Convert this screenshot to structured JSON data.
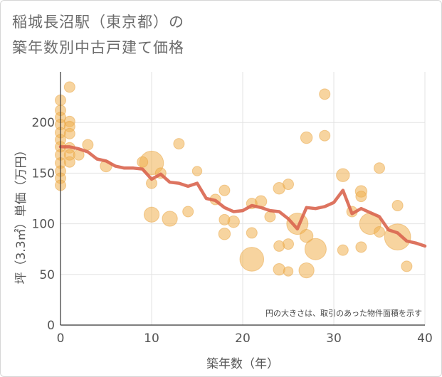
{
  "title": {
    "line1": "稲城長沼駅（東京都）の",
    "line2": "築年数別中古戸建て価格"
  },
  "chart_data": {
    "type": "scatter",
    "xlabel": "築年数（年）",
    "ylabel": "坪（3.3㎡）単価（万円）",
    "xlim": [
      0,
      40
    ],
    "ylim": [
      0,
      250
    ],
    "xticks": [
      0,
      10,
      20,
      30,
      40
    ],
    "yticks": [
      0,
      50,
      100,
      150,
      200
    ],
    "grid": true,
    "note": "円の大きさは、取引のあった物件面積を示す",
    "colors": {
      "bubble": "#f0b050",
      "line": "#d9654f",
      "grid": "#e3e3e3",
      "plot_bg": "#ffffff"
    },
    "series": [
      {
        "kind": "bubble",
        "points": [
          {
            "x": 0,
            "y": 222,
            "s": 1
          },
          {
            "x": 0,
            "y": 212,
            "s": 1
          },
          {
            "x": 0,
            "y": 205,
            "s": 1
          },
          {
            "x": 0,
            "y": 198,
            "s": 1
          },
          {
            "x": 0,
            "y": 190,
            "s": 1
          },
          {
            "x": 0,
            "y": 183,
            "s": 1
          },
          {
            "x": 0,
            "y": 176,
            "s": 1
          },
          {
            "x": 0,
            "y": 168,
            "s": 1
          },
          {
            "x": 0,
            "y": 160,
            "s": 1
          },
          {
            "x": 0,
            "y": 152,
            "s": 1
          },
          {
            "x": 0,
            "y": 145,
            "s": 1
          },
          {
            "x": 0,
            "y": 138,
            "s": 1
          },
          {
            "x": 1,
            "y": 235,
            "s": 1
          },
          {
            "x": 1,
            "y": 201,
            "s": 1
          },
          {
            "x": 1,
            "y": 196,
            "s": 1
          },
          {
            "x": 1,
            "y": 189,
            "s": 1
          },
          {
            "x": 1,
            "y": 175,
            "s": 1
          },
          {
            "x": 1,
            "y": 168,
            "s": 1
          },
          {
            "x": 1,
            "y": 161,
            "s": 1
          },
          {
            "x": 2,
            "y": 168,
            "s": 1
          },
          {
            "x": 3,
            "y": 178,
            "s": 1
          },
          {
            "x": 5,
            "y": 157,
            "s": 1.2
          },
          {
            "x": 10,
            "y": 160,
            "s": 5
          },
          {
            "x": 9,
            "y": 161,
            "s": 1
          },
          {
            "x": 10,
            "y": 140,
            "s": 1
          },
          {
            "x": 11,
            "y": 150,
            "s": 1
          },
          {
            "x": 10,
            "y": 109,
            "s": 2
          },
          {
            "x": 12,
            "y": 105,
            "s": 2
          },
          {
            "x": 13,
            "y": 179,
            "s": 1
          },
          {
            "x": 14,
            "y": 112,
            "s": 1
          },
          {
            "x": 15,
            "y": 152,
            "s": 0.8
          },
          {
            "x": 17,
            "y": 124,
            "s": 1
          },
          {
            "x": 18,
            "y": 133,
            "s": 1
          },
          {
            "x": 18,
            "y": 104,
            "s": 1
          },
          {
            "x": 18,
            "y": 90,
            "s": 1.2
          },
          {
            "x": 19,
            "y": 102,
            "s": 1.2
          },
          {
            "x": 21,
            "y": 65,
            "s": 5
          },
          {
            "x": 21,
            "y": 91,
            "s": 1
          },
          {
            "x": 21,
            "y": 120,
            "s": 1
          },
          {
            "x": 22,
            "y": 122,
            "s": 1.2
          },
          {
            "x": 23,
            "y": 107,
            "s": 1
          },
          {
            "x": 24,
            "y": 78,
            "s": 1
          },
          {
            "x": 24,
            "y": 55,
            "s": 1.2
          },
          {
            "x": 24,
            "y": 135,
            "s": 1.2
          },
          {
            "x": 25,
            "y": 139,
            "s": 1
          },
          {
            "x": 25,
            "y": 80,
            "s": 1
          },
          {
            "x": 25,
            "y": 53,
            "s": 0.8
          },
          {
            "x": 26,
            "y": 100,
            "s": 4
          },
          {
            "x": 27,
            "y": 88,
            "s": 1.5
          },
          {
            "x": 27,
            "y": 54,
            "s": 2
          },
          {
            "x": 27,
            "y": 185,
            "s": 1.2
          },
          {
            "x": 28,
            "y": 75,
            "s": 4
          },
          {
            "x": 29,
            "y": 228,
            "s": 1
          },
          {
            "x": 29,
            "y": 187,
            "s": 1
          },
          {
            "x": 31,
            "y": 148,
            "s": 1.5
          },
          {
            "x": 31,
            "y": 74,
            "s": 1
          },
          {
            "x": 32,
            "y": 112,
            "s": 1
          },
          {
            "x": 33,
            "y": 132,
            "s": 1.2
          },
          {
            "x": 33,
            "y": 127,
            "s": 1
          },
          {
            "x": 33,
            "y": 77,
            "s": 1
          },
          {
            "x": 34,
            "y": 100,
            "s": 4
          },
          {
            "x": 35,
            "y": 155,
            "s": 1
          },
          {
            "x": 35,
            "y": 92,
            "s": 1
          },
          {
            "x": 37,
            "y": 87,
            "s": 6
          },
          {
            "x": 37,
            "y": 118,
            "s": 1
          },
          {
            "x": 38,
            "y": 58,
            "s": 1
          }
        ]
      },
      {
        "kind": "line",
        "points": [
          {
            "x": 0,
            "y": 176
          },
          {
            "x": 1,
            "y": 176
          },
          {
            "x": 2,
            "y": 174
          },
          {
            "x": 3,
            "y": 171
          },
          {
            "x": 4,
            "y": 164
          },
          {
            "x": 5,
            "y": 162
          },
          {
            "x": 6,
            "y": 157
          },
          {
            "x": 7,
            "y": 155
          },
          {
            "x": 8,
            "y": 155
          },
          {
            "x": 9,
            "y": 154
          },
          {
            "x": 10,
            "y": 144
          },
          {
            "x": 11,
            "y": 149
          },
          {
            "x": 12,
            "y": 141
          },
          {
            "x": 13,
            "y": 140
          },
          {
            "x": 14,
            "y": 137
          },
          {
            "x": 15,
            "y": 140
          },
          {
            "x": 16,
            "y": 125
          },
          {
            "x": 17,
            "y": 123
          },
          {
            "x": 18,
            "y": 116
          },
          {
            "x": 19,
            "y": 112
          },
          {
            "x": 20,
            "y": 113
          },
          {
            "x": 21,
            "y": 118
          },
          {
            "x": 22,
            "y": 116
          },
          {
            "x": 23,
            "y": 113
          },
          {
            "x": 24,
            "y": 112
          },
          {
            "x": 25,
            "y": 105
          },
          {
            "x": 26,
            "y": 95
          },
          {
            "x": 27,
            "y": 116
          },
          {
            "x": 28,
            "y": 115
          },
          {
            "x": 29,
            "y": 117
          },
          {
            "x": 30,
            "y": 121
          },
          {
            "x": 31,
            "y": 133
          },
          {
            "x": 32,
            "y": 110
          },
          {
            "x": 33,
            "y": 115
          },
          {
            "x": 34,
            "y": 111
          },
          {
            "x": 35,
            "y": 107
          },
          {
            "x": 36,
            "y": 94
          },
          {
            "x": 37,
            "y": 91
          },
          {
            "x": 38,
            "y": 83
          },
          {
            "x": 39,
            "y": 81
          },
          {
            "x": 40,
            "y": 78
          }
        ]
      }
    ]
  }
}
